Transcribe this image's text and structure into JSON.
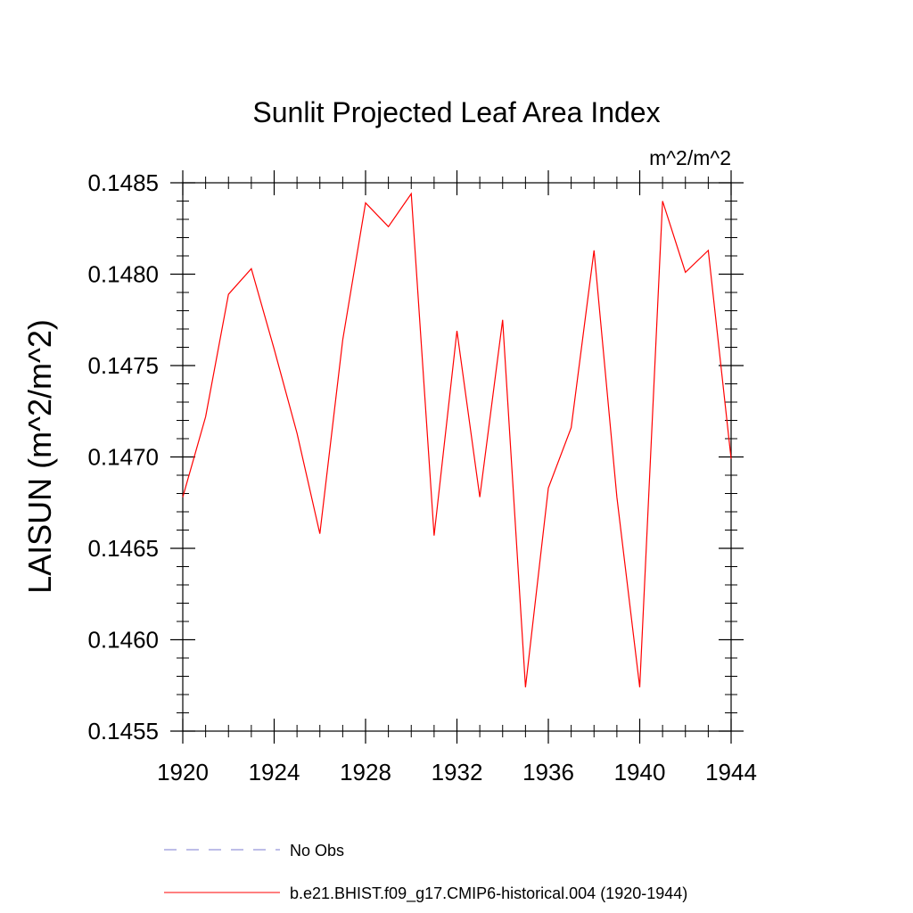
{
  "chart_data": {
    "type": "line",
    "title": "Sunlit Projected Leaf Area Index",
    "units_label": "m^2/m^2",
    "ylabel": "LAISUN  (m^2/m^2)",
    "xlabel": "",
    "xlim": [
      1920,
      1944
    ],
    "ylim": [
      0.1455,
      0.1485
    ],
    "x_ticks": [
      1920,
      1924,
      1928,
      1932,
      1936,
      1940,
      1944
    ],
    "x_tick_labels": [
      "1920",
      "1924",
      "1928",
      "1932",
      "1936",
      "1940",
      "1944"
    ],
    "y_ticks": [
      0.1455,
      0.146,
      0.1465,
      0.147,
      0.1475,
      0.148,
      0.1485
    ],
    "y_tick_labels": [
      "0.1455",
      "0.1460",
      "0.1465",
      "0.1470",
      "0.1475",
      "0.1480",
      "0.1485"
    ],
    "grid": false,
    "legend_position": "bottom",
    "series": [
      {
        "name": "b.e21.BHIST.f09_g17.CMIP6-historical.004 (1920-1944)",
        "color": "#ff0000",
        "style": "solid",
        "x": [
          1920,
          1921,
          1922,
          1923,
          1924,
          1925,
          1926,
          1927,
          1928,
          1929,
          1930,
          1931,
          1932,
          1933,
          1934,
          1935,
          1936,
          1937,
          1938,
          1939,
          1940,
          1941,
          1942,
          1943,
          1944
        ],
        "values": [
          0.14678,
          0.14722,
          0.14789,
          0.14803,
          0.14759,
          0.14713,
          0.14658,
          0.14764,
          0.14839,
          0.14826,
          0.14844,
          0.14657,
          0.14769,
          0.14678,
          0.14775,
          0.14574,
          0.14683,
          0.14716,
          0.14813,
          0.14678,
          0.14574,
          0.1484,
          0.14801,
          0.14813,
          0.14699
        ]
      }
    ],
    "legend": [
      {
        "label": "No Obs",
        "color": "#7b7bd0",
        "style": "dashed"
      },
      {
        "label": "b.e21.BHIST.f09_g17.CMIP6-historical.004 (1920-1944)",
        "color": "#ff0000",
        "style": "solid"
      }
    ]
  }
}
